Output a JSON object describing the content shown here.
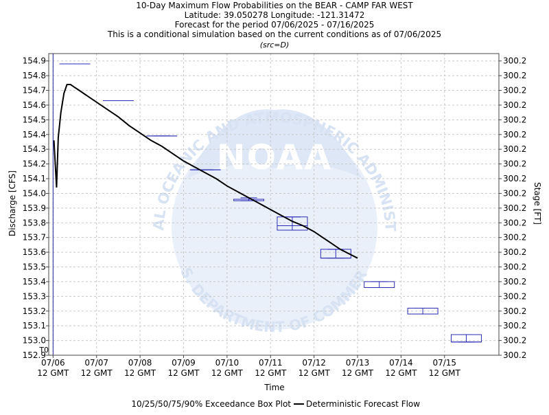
{
  "chart_data": {
    "type": "line",
    "title_lines": [
      "10-Day Maximum Flow Probabilities on the BEAR - CAMP FAR WEST",
      "Latitude: 39.050278 Longitude: -121.31472",
      "Forecast for the period 07/06/2025 - 07/16/2025",
      "This is a conditional simulation based on the current conditions as of 07/06/2025"
    ],
    "subtitle": "(src=D)",
    "xlabel": "Time",
    "ylabel": "Discharge [CFS]",
    "y2label": "Stage [FT]",
    "x_tick_labels": [
      [
        "07/06",
        "12 GMT"
      ],
      [
        "07/07",
        "12 GMT"
      ],
      [
        "07/08",
        "12 GMT"
      ],
      [
        "07/09",
        "12 GMT"
      ],
      [
        "07/10",
        "12 GMT"
      ],
      [
        "07/11",
        "12 GMT"
      ],
      [
        "07/12",
        "12 GMT"
      ],
      [
        "07/13",
        "12 GMT"
      ],
      [
        "07/14",
        "12 GMT"
      ],
      [
        "07/15",
        "12 GMT"
      ]
    ],
    "xlim": [
      -0.1,
      10.25
    ],
    "ylim": [
      152.9,
      154.95
    ],
    "y_ticks": [
      152.9,
      153.0,
      153.1,
      153.2,
      153.3,
      153.4,
      153.5,
      153.6,
      153.7,
      153.8,
      153.9,
      154.0,
      154.1,
      154.2,
      154.3,
      154.4,
      154.5,
      154.6,
      154.7,
      154.8,
      154.9
    ],
    "y2_tick_label": "300.2",
    "t0_label": "T0",
    "t0_x": 0,
    "grid": true,
    "watermark": {
      "logo_text": "NOAA",
      "ring_text": "NATIONAL OCEANIC AND ATMOSPHERIC ADMINISTRATION",
      "bottom_text": "U.S. DEPARTMENT OF COMMERCE"
    },
    "legend": {
      "position": "bottom",
      "box_label": "10/25/50/75/90% Exceedance Box Plot",
      "line_label": "Deterministic Forecast Flow"
    },
    "colors": {
      "box": "#2b2bb3",
      "line": "#000000",
      "grid": "#c8c8c8",
      "t0": "#1e1e8c",
      "watermark": "#dfe8f6"
    },
    "boxes": [
      {
        "x": 0.5,
        "p10": 154.88,
        "p25": 154.88,
        "p50": 154.88,
        "p75": 154.88,
        "p90": 154.88
      },
      {
        "x": 1.5,
        "p10": 154.63,
        "p25": 154.63,
        "p50": 154.63,
        "p75": 154.63,
        "p90": 154.63
      },
      {
        "x": 2.5,
        "p10": 154.39,
        "p25": 154.39,
        "p50": 154.39,
        "p75": 154.39,
        "p90": 154.39
      },
      {
        "x": 3.5,
        "p10": 154.16,
        "p25": 154.16,
        "p50": 154.16,
        "p75": 154.16,
        "p90": 154.16
      },
      {
        "x": 4.5,
        "p10": 153.95,
        "p25": 153.95,
        "p50": 153.96,
        "p75": 153.96,
        "p90": 153.97
      },
      {
        "x": 5.5,
        "p10": 153.75,
        "p25": 153.75,
        "p50": 153.78,
        "p75": 153.84,
        "p90": 153.84
      },
      {
        "x": 6.5,
        "p10": 153.56,
        "p25": 153.56,
        "p50": 153.56,
        "p75": 153.62,
        "p90": 153.62
      },
      {
        "x": 7.5,
        "p10": 153.36,
        "p25": 153.36,
        "p50": 153.36,
        "p75": 153.4,
        "p90": 153.4
      },
      {
        "x": 8.5,
        "p10": 153.18,
        "p25": 153.18,
        "p50": 153.18,
        "p75": 153.22,
        "p90": 153.22
      },
      {
        "x": 9.5,
        "p10": 152.99,
        "p25": 152.99,
        "p50": 152.99,
        "p75": 153.04,
        "p90": 153.04
      }
    ],
    "series": [
      {
        "x": [
          0.02,
          0.08,
          0.12,
          0.18,
          0.25,
          0.32,
          0.4,
          0.5,
          0.6,
          0.75,
          1.0,
          1.25,
          1.5,
          1.75,
          2.0,
          2.25,
          2.5,
          2.75,
          3.0,
          3.25,
          3.5,
          3.75,
          4.0,
          4.25,
          4.5,
          4.75,
          5.0,
          5.25,
          5.5,
          5.75,
          6.0,
          6.2,
          6.4,
          6.6,
          6.8,
          7.0
        ],
        "y": [
          154.36,
          154.04,
          154.38,
          154.55,
          154.68,
          154.74,
          154.74,
          154.72,
          154.7,
          154.67,
          154.62,
          154.57,
          154.52,
          154.46,
          154.41,
          154.36,
          154.32,
          154.27,
          154.22,
          154.18,
          154.14,
          154.1,
          154.05,
          154.01,
          153.97,
          153.93,
          153.89,
          153.85,
          153.81,
          153.78,
          153.74,
          153.7,
          153.66,
          153.62,
          153.59,
          153.56
        ]
      }
    ]
  }
}
